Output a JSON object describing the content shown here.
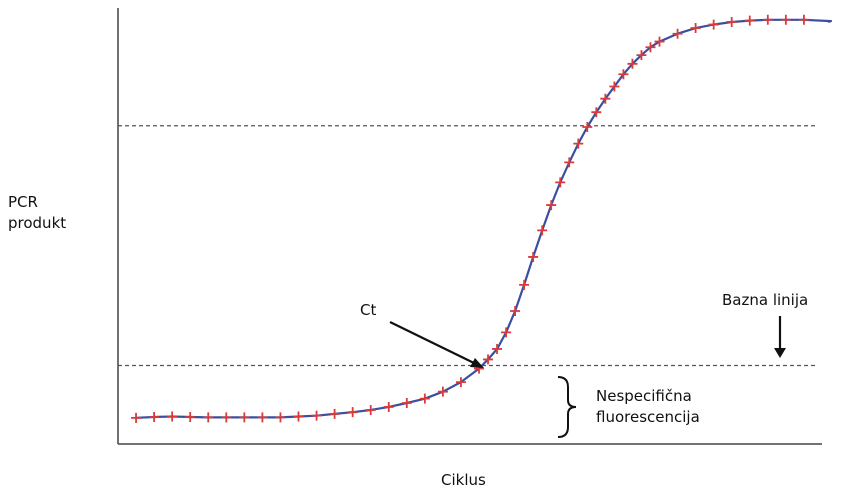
{
  "chart_data": {
    "type": "line",
    "title": "",
    "xlabel": "Ciklus",
    "ylabel_lines": [
      "PCR",
      "produkt"
    ],
    "annotations": {
      "ct": "Ct",
      "baseline": "Bazna linija",
      "nonspecific_lines": [
        "Nespecifična",
        "fluorescencija"
      ]
    },
    "xlim": [
      0,
      40
    ],
    "ylim": [
      0,
      100
    ],
    "threshold_levels": [
      18,
      73
    ],
    "grid": false,
    "legend": "none",
    "colors": {
      "line": "#3a4fa0",
      "marker": "#d93a3a",
      "axis": "#444444",
      "dashed": "#555555"
    },
    "series": [
      {
        "x": [
          1,
          2,
          3,
          4,
          5,
          6,
          7,
          8,
          9,
          10,
          11,
          12,
          13,
          14,
          15,
          16,
          17,
          18,
          19,
          20,
          20.5,
          21,
          21.5,
          22,
          22.5,
          23,
          23.5,
          24,
          24.5,
          25,
          25.5,
          26,
          26.5,
          27,
          27.5,
          28,
          28.5,
          29,
          29.5,
          30,
          31,
          32,
          33,
          34,
          35,
          36,
          37,
          38
        ],
        "y": [
          6,
          6.2,
          6.3,
          6.2,
          6.1,
          6.1,
          6.1,
          6.1,
          6.1,
          6.3,
          6.5,
          6.9,
          7.3,
          7.8,
          8.5,
          9.4,
          10.4,
          12,
          14.2,
          17.3,
          19.4,
          21.8,
          25.6,
          30.5,
          36.5,
          42.9,
          49,
          54.8,
          60,
          64.6,
          68.9,
          72.7,
          76.1,
          79.2,
          82,
          84.8,
          87.2,
          89.2,
          91,
          92.3,
          94.1,
          95.4,
          96.2,
          96.8,
          97.1,
          97.3,
          97.3,
          97.3
        ]
      }
    ]
  }
}
